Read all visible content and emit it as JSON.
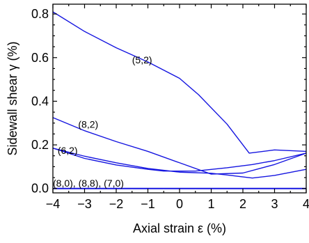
{
  "chart_data": {
    "type": "line",
    "xlabel": "Axial strain ε (%)",
    "ylabel": "Sidewall shear γ (%)",
    "xlim": [
      -4,
      4
    ],
    "ylim": [
      -0.02,
      0.845
    ],
    "x_ticks": [
      -4,
      -3,
      -2,
      -1,
      0,
      1,
      2,
      3,
      4
    ],
    "x_tick_labels": [
      "−4",
      "−3",
      "−2",
      "−1",
      "0",
      "1",
      "2",
      "3",
      "4"
    ],
    "y_ticks": [
      0.0,
      0.2,
      0.4,
      0.6,
      0.8
    ],
    "y_tick_labels": [
      "0.0",
      "0.2",
      "0.4",
      "0.6",
      "0.8"
    ],
    "grid": false,
    "line_color": "#1515e0",
    "annotations": [
      {
        "text": "(5,2)",
        "x": -1.5,
        "y": 0.59
      },
      {
        "text": "(8,2)",
        "x": -3.2,
        "y": 0.295
      },
      {
        "text": "(6,2)",
        "x": -3.85,
        "y": 0.175
      },
      {
        "text": "(8,0), (8,8), (7,0)",
        "x": -4.0,
        "y": 0.025
      }
    ],
    "series": [
      {
        "x": [
          -4,
          -3,
          -2,
          -1,
          0,
          0.6,
          1.5,
          2.2,
          3.0,
          4.0
        ],
        "y": [
          0.81,
          0.72,
          0.645,
          0.58,
          0.505,
          0.43,
          0.295,
          0.162,
          0.177,
          0.17
        ]
      },
      {
        "x": [
          -4,
          -3,
          -2,
          -1,
          0,
          1,
          2,
          3,
          4
        ],
        "y": [
          0.325,
          0.265,
          0.215,
          0.17,
          0.118,
          0.066,
          0.071,
          0.11,
          0.162
        ]
      },
      {
        "x": [
          -4,
          -3,
          -2,
          -1,
          -0.5,
          0.5,
          1.5,
          2.3,
          3.0,
          4.0
        ],
        "y": [
          0.185,
          0.138,
          0.108,
          0.088,
          0.08,
          0.08,
          0.095,
          0.11,
          0.128,
          0.162
        ]
      },
      {
        "x": [
          -4,
          -3,
          -2,
          -1,
          0,
          1,
          1.5,
          2.3,
          3.0,
          4.0
        ],
        "y": [
          0.185,
          0.148,
          0.118,
          0.092,
          0.075,
          0.07,
          0.062,
          0.048,
          0.06,
          0.088
        ]
      },
      {
        "x": [
          -4,
          4
        ],
        "y": [
          0.0,
          0.0
        ]
      },
      {
        "x": [
          -4,
          4
        ],
        "y": [
          0.001,
          0.001
        ]
      },
      {
        "x": [
          -4,
          4
        ],
        "y": [
          -0.001,
          -0.001
        ]
      }
    ]
  }
}
